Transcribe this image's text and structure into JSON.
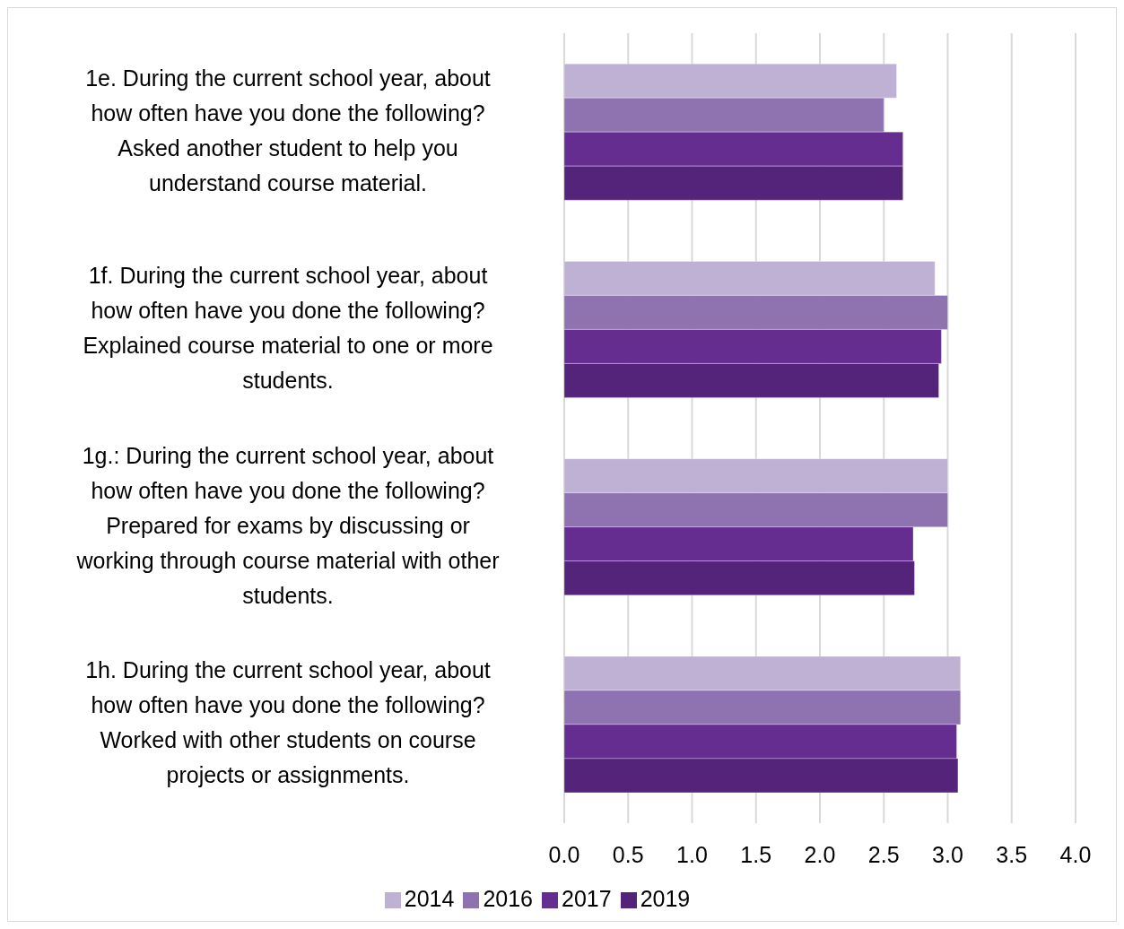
{
  "chart_data": {
    "type": "bar",
    "orientation": "horizontal",
    "categories": [
      "1e. During the current school year, about how often have you done the following? Asked another student to help you understand course material.",
      "1f. During the current school year, about how often have you done the following? Explained course material to one or more students.",
      "1g.: During the current school year, about how often have you done the following? Prepared for exams by discussing or working through course material with other students.",
      "1h. During the current school year, about how often have you done the following? Worked with other students on course projects or assignments."
    ],
    "series": [
      {
        "name": "2014",
        "color": "#bfb1d3",
        "values": [
          2.6,
          2.9,
          3.0,
          3.1
        ]
      },
      {
        "name": "2016",
        "color": "#8e73b0",
        "values": [
          2.5,
          3.0,
          3.0,
          3.1
        ]
      },
      {
        "name": "2017",
        "color": "#662d91",
        "values": [
          2.65,
          2.95,
          2.73,
          3.07
        ]
      },
      {
        "name": "2019",
        "color": "#54237a",
        "values": [
          2.65,
          2.93,
          2.74,
          3.08
        ]
      }
    ],
    "xlim": [
      0,
      4
    ],
    "xticks": [
      {
        "value": 0,
        "label": "0.0"
      },
      {
        "value": 0.5,
        "label": "0.5"
      },
      {
        "value": 1,
        "label": "1.0"
      },
      {
        "value": 1.5,
        "label": "1.5"
      },
      {
        "value": 2,
        "label": "2.0"
      },
      {
        "value": 2.5,
        "label": "2.5"
      },
      {
        "value": 3,
        "label": "3.0"
      },
      {
        "value": 3.5,
        "label": "3.5"
      },
      {
        "value": 4,
        "label": "4.0"
      }
    ],
    "grid": "x",
    "legend": "bottom"
  }
}
